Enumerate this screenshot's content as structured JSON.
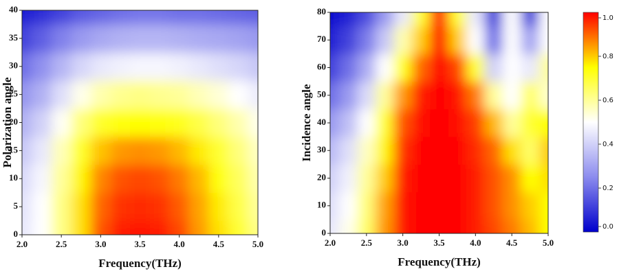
{
  "chart_data": [
    {
      "type": "heatmap",
      "xlabel": "Frequency(THz)",
      "ylabel": "Polarization angle",
      "x": [
        2.0,
        2.25,
        2.5,
        2.75,
        3.0,
        3.25,
        3.5,
        3.75,
        4.0,
        4.25,
        4.5,
        4.75,
        5.0
      ],
      "y": [
        0,
        5,
        10,
        15,
        20,
        25,
        30,
        35,
        40
      ],
      "z": [
        [
          0.45,
          0.5,
          0.62,
          0.78,
          0.92,
          0.97,
          0.98,
          0.97,
          0.93,
          0.85,
          0.78,
          0.7,
          0.62
        ],
        [
          0.44,
          0.5,
          0.62,
          0.78,
          0.9,
          0.95,
          0.96,
          0.95,
          0.91,
          0.84,
          0.77,
          0.68,
          0.6
        ],
        [
          0.42,
          0.48,
          0.6,
          0.76,
          0.87,
          0.92,
          0.93,
          0.92,
          0.88,
          0.82,
          0.74,
          0.66,
          0.58
        ],
        [
          0.38,
          0.45,
          0.57,
          0.71,
          0.81,
          0.85,
          0.86,
          0.85,
          0.82,
          0.77,
          0.7,
          0.63,
          0.56
        ],
        [
          0.33,
          0.4,
          0.51,
          0.63,
          0.71,
          0.74,
          0.75,
          0.74,
          0.72,
          0.68,
          0.63,
          0.58,
          0.52
        ],
        [
          0.27,
          0.33,
          0.43,
          0.52,
          0.58,
          0.61,
          0.62,
          0.61,
          0.6,
          0.57,
          0.54,
          0.5,
          0.46
        ],
        [
          0.2,
          0.26,
          0.34,
          0.41,
          0.45,
          0.47,
          0.48,
          0.48,
          0.47,
          0.45,
          0.43,
          0.41,
          0.38
        ],
        [
          0.12,
          0.17,
          0.23,
          0.28,
          0.31,
          0.33,
          0.34,
          0.34,
          0.33,
          0.32,
          0.31,
          0.3,
          0.28
        ],
        [
          0.05,
          0.08,
          0.12,
          0.16,
          0.18,
          0.2,
          0.21,
          0.21,
          0.2,
          0.2,
          0.19,
          0.18,
          0.17
        ]
      ],
      "xlim": [
        2.0,
        5.0
      ],
      "ylim": [
        0,
        40
      ],
      "xticks": [
        {
          "value": 2.0,
          "label": "2.0"
        },
        2.5,
        {
          "value": 3.0,
          "label": "3.0"
        },
        3.5,
        {
          "value": 4.0,
          "label": "4.0"
        },
        4.5,
        {
          "value": 5.0,
          "label": "5.0"
        }
      ],
      "yticks": [
        0,
        5,
        10,
        15,
        20,
        25,
        30,
        35,
        40
      ],
      "colormap": [
        "#0000cc",
        "#8c8cee",
        "#ffffff",
        "#ffff00",
        "#ff0000"
      ]
    },
    {
      "type": "heatmap",
      "xlabel": "Frequency(THz)",
      "ylabel": "Incidence angle",
      "x": [
        2.0,
        2.25,
        2.5,
        2.75,
        3.0,
        3.25,
        3.5,
        3.75,
        4.0,
        4.25,
        4.5,
        4.75,
        5.0
      ],
      "y": [
        0,
        10,
        20,
        30,
        40,
        50,
        60,
        70,
        80
      ],
      "z": [
        [
          0.45,
          0.52,
          0.65,
          0.85,
          0.98,
          1.0,
          1.0,
          1.0,
          0.97,
          0.93,
          0.88,
          0.82,
          0.75
        ],
        [
          0.43,
          0.5,
          0.63,
          0.84,
          0.98,
          1.0,
          1.0,
          1.0,
          0.97,
          0.92,
          0.86,
          0.8,
          0.75
        ],
        [
          0.4,
          0.47,
          0.6,
          0.8,
          0.97,
          1.0,
          1.0,
          1.0,
          0.97,
          0.92,
          0.86,
          0.75,
          0.78
        ],
        [
          0.35,
          0.43,
          0.56,
          0.76,
          0.95,
          1.0,
          1.0,
          1.0,
          0.96,
          0.9,
          0.78,
          0.65,
          0.8
        ],
        [
          0.28,
          0.36,
          0.5,
          0.7,
          0.92,
          0.99,
          1.0,
          0.99,
          0.94,
          0.82,
          0.6,
          0.7,
          0.75
        ],
        [
          0.2,
          0.28,
          0.42,
          0.6,
          0.85,
          0.97,
          1.0,
          0.98,
          0.88,
          0.6,
          0.5,
          0.65,
          0.55
        ],
        [
          0.12,
          0.2,
          0.32,
          0.5,
          0.72,
          0.9,
          1.0,
          0.93,
          0.7,
          0.4,
          0.5,
          0.45,
          0.6
        ],
        [
          0.06,
          0.12,
          0.22,
          0.38,
          0.58,
          0.8,
          1.0,
          0.8,
          0.5,
          0.2,
          0.5,
          0.3,
          0.5
        ],
        [
          0.02,
          0.06,
          0.14,
          0.28,
          0.45,
          0.7,
          1.0,
          0.7,
          0.45,
          0.1,
          0.5,
          0.1,
          0.5
        ]
      ],
      "xlim": [
        2.0,
        5.0
      ],
      "ylim": [
        0,
        80
      ],
      "xticks": [
        {
          "value": 2.0,
          "label": "2.0"
        },
        2.5,
        {
          "value": 3.0,
          "label": "3.0"
        },
        3.5,
        {
          "value": 4.0,
          "label": "4.0"
        },
        4.5,
        {
          "value": 5.0,
          "label": "5.0"
        }
      ],
      "yticks": [
        0,
        10,
        20,
        30,
        40,
        50,
        60,
        70,
        80
      ],
      "colormap": [
        "#0000cc",
        "#8c8cee",
        "#ffffff",
        "#ffff00",
        "#ff0000"
      ],
      "colorbar": {
        "zlim": [
          0,
          1
        ],
        "zticks": [
          {
            "value": 0,
            "label": "0.0"
          },
          0.2,
          0.4,
          0.6,
          0.8,
          {
            "value": 1,
            "label": "1.0"
          }
        ]
      }
    }
  ]
}
